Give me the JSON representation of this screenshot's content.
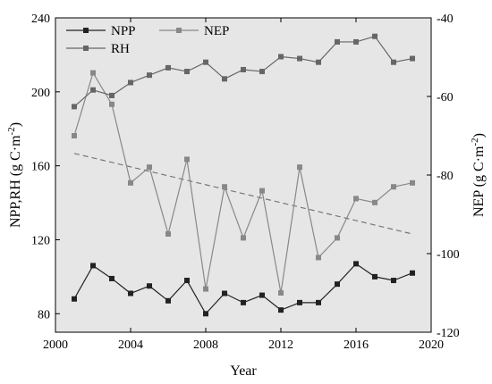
{
  "chart_data": {
    "type": "line",
    "xlabel": "Year",
    "ylabel_left": "NPP,RH (g C·m",
    "ylabel_right": "NEP (g C·m",
    "ylabel_sup": "-2",
    "ylabel_close": ")",
    "xlim": [
      2000,
      2020
    ],
    "ylim_left": [
      70,
      240
    ],
    "ylim_right": [
      -120,
      -40
    ],
    "x_ticks": [
      "2000",
      "2004",
      "2008",
      "2012",
      "2016",
      "2020"
    ],
    "y_left_ticks": [
      "80",
      "120",
      "160",
      "200",
      "240"
    ],
    "y_right_ticks": [
      "-40",
      "-60",
      "-80",
      "-100",
      "-120"
    ],
    "background": "#e6e6e6",
    "x": [
      2001,
      2002,
      2003,
      2004,
      2005,
      2006,
      2007,
      2008,
      2009,
      2010,
      2011,
      2012,
      2013,
      2014,
      2015,
      2016,
      2017,
      2018,
      2019
    ],
    "series": [
      {
        "name": "NPP",
        "axis": "left",
        "color": "#222222",
        "marker": "square",
        "values": [
          88,
          106,
          99,
          91,
          95,
          87,
          98,
          80,
          91,
          86,
          90,
          82,
          86,
          86,
          96,
          107,
          100,
          98,
          102
        ]
      },
      {
        "name": "NEP",
        "axis": "right",
        "color": "#888888",
        "marker": "square",
        "values": [
          -70,
          -54,
          -62,
          -82,
          -78,
          -95,
          -76,
          -109,
          -83,
          -96,
          -84,
          -110,
          -78,
          -101,
          -96,
          -86,
          -87,
          -83,
          -82
        ]
      },
      {
        "name": "RH",
        "axis": "left",
        "color": "#666666",
        "marker": "square",
        "values": [
          192,
          201,
          198,
          205,
          209,
          213,
          211,
          216,
          207,
          212,
          211,
          219,
          218,
          216,
          227,
          227,
          230,
          216,
          218
        ]
      }
    ],
    "trendline": {
      "axis": "right",
      "color": "#777777",
      "style": "dashed",
      "x": [
        2001,
        2019
      ],
      "y": [
        -74.5,
        -95
      ]
    },
    "legend": {
      "placement": "top-left",
      "items": [
        "NPP",
        "NEP",
        "RH"
      ]
    }
  }
}
